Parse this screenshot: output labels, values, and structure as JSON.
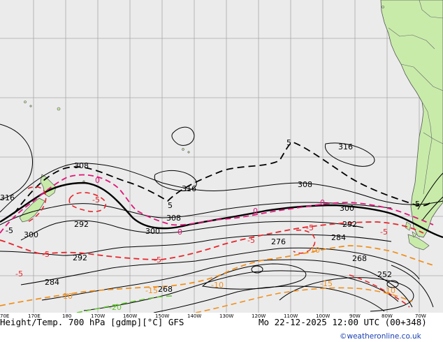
{
  "map": {
    "footer_left": "Height/Temp. 700 hPa [gdmp][°C] GFS",
    "footer_right": "Mo 22-12-2025 12:00 UTC (00+348)",
    "credit": "©weatheronline.co.uk",
    "colors": {
      "land": "#c8ebaa",
      "ocean": "#ebebeb",
      "height_contour": "#000000",
      "temp_0": "#e0167a",
      "temp_minus5": "#e8242a",
      "temp_minus10": "#f0901e",
      "temp_minus20": "#64c832"
    },
    "longitude_ticks": [
      "70E",
      "170E",
      "180",
      "170W",
      "160W",
      "150W",
      "140W",
      "130W",
      "120W",
      "110W",
      "100W",
      "90W",
      "80W",
      "70W"
    ],
    "height_labels": [
      "316",
      "308",
      "300",
      "292",
      "284",
      "276",
      "268",
      "252",
      "316",
      "308",
      "300",
      "316",
      "308",
      "300",
      "292",
      "284",
      "268",
      "292",
      "284"
    ],
    "temp_labels": [
      "5",
      "5",
      "-5",
      "0",
      "-5",
      "-5",
      "-10",
      "-5",
      "0",
      "-5",
      "0",
      "-5",
      "-10",
      "-15",
      "-10",
      "-15",
      "-10",
      "-5",
      "-20",
      "-5",
      "-5",
      "0"
    ]
  }
}
